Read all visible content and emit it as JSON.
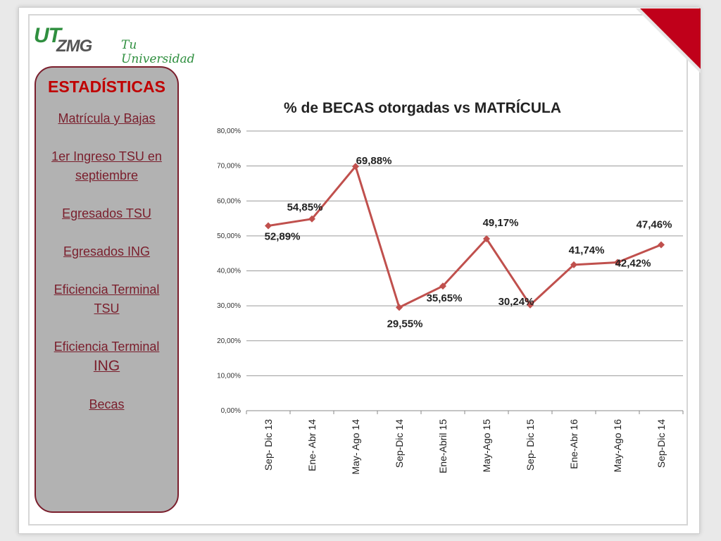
{
  "logo": {
    "brand_ut": "UT",
    "brand_zmg": "ZMG",
    "tagline": "Tu Universidad !"
  },
  "sidebar": {
    "title": "ESTADÍSTICAS",
    "items": [
      {
        "label": "Matrícula y Bajas"
      },
      {
        "label": "1er Ingreso TSU en septiembre"
      },
      {
        "label": "Egresados TSU"
      },
      {
        "label": "Egresados ING"
      },
      {
        "label": "Eficiencia Terminal TSU"
      },
      {
        "label": "Eficiencia Terminal",
        "label_suffix": "ING"
      },
      {
        "label": "Becas"
      }
    ]
  },
  "colors": {
    "series": "#c0504d",
    "marker": "#c0504d",
    "sidebar_bg": "#b2b2b2",
    "sidebar_border": "#7a1e2c",
    "sidebar_title": "#c00000",
    "nav_link": "#7a1e2c",
    "corner_fold": "#c0001a"
  },
  "chart_data": {
    "type": "line",
    "title": "% de BECAS otorgadas vs MATRÍCULA",
    "xlabel": "",
    "ylabel": "",
    "ylim": [
      0,
      80
    ],
    "y_ticks": [
      "0,00%",
      "10,00%",
      "20,00%",
      "30,00%",
      "40,00%",
      "50,00%",
      "60,00%",
      "70,00%",
      "80,00%"
    ],
    "grid": "horizontal",
    "legend": "none",
    "categories": [
      "Sep- Dic 13",
      "Ene- Abr 14",
      "May- Ago 14",
      "Sep-Dic 14",
      "Ene-Abril 15",
      "May-Ago 15",
      "Sep- Dic 15",
      "Ene-Abr 16",
      "May-Ago 16",
      "Sep-Dic 14"
    ],
    "series": [
      {
        "values": [
          52.89,
          54.85,
          69.88,
          29.55,
          35.65,
          49.17,
          30.24,
          41.74,
          42.42,
          47.46
        ],
        "data_labels": [
          "52,89%",
          "54,85%",
          "69,88%",
          "29,55%",
          "35,65%",
          "49,17%",
          "30,24%",
          "41,74%",
          "42,42%",
          "47,46%"
        ]
      }
    ]
  }
}
